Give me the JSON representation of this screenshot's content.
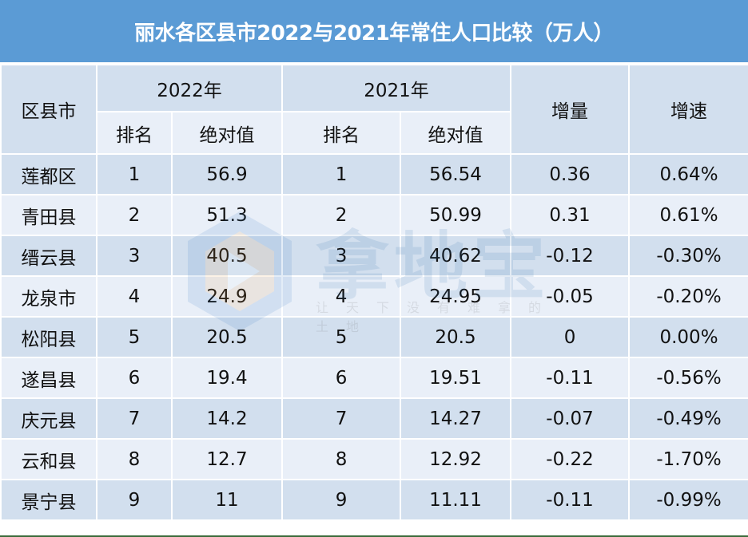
{
  "title": "丽水各区县市2022与2021年常住人口比较（万人）",
  "colors": {
    "title_bg": "#5b9bd5",
    "header_bg": "#d2dfee",
    "row_dark": "#d2dfee",
    "row_light": "#e9eff8"
  },
  "header": {
    "district": "区县市",
    "year2022": "2022年",
    "year2021": "2021年",
    "change": "增量",
    "growth": "增速",
    "rank": "排名",
    "absolute": "绝对值"
  },
  "watermark": {
    "text": "拿地宝",
    "slogan": "让天下没有难拿的土地"
  },
  "rows": [
    {
      "name": "莲都区",
      "rank2022": "1",
      "val2022": "56.9",
      "rank2021": "1",
      "val2021": "56.54",
      "change": "0.36",
      "growth": "0.64%"
    },
    {
      "name": "青田县",
      "rank2022": "2",
      "val2022": "51.3",
      "rank2021": "2",
      "val2021": "50.99",
      "change": "0.31",
      "growth": "0.61%"
    },
    {
      "name": "缙云县",
      "rank2022": "3",
      "val2022": "40.5",
      "rank2021": "3",
      "val2021": "40.62",
      "change": "-0.12",
      "growth": "-0.30%"
    },
    {
      "name": "龙泉市",
      "rank2022": "4",
      "val2022": "24.9",
      "rank2021": "4",
      "val2021": "24.95",
      "change": "-0.05",
      "growth": "-0.20%"
    },
    {
      "name": "松阳县",
      "rank2022": "5",
      "val2022": "20.5",
      "rank2021": "5",
      "val2021": "20.5",
      "change": "0",
      "growth": "0.00%"
    },
    {
      "name": "遂昌县",
      "rank2022": "6",
      "val2022": "19.4",
      "rank2021": "6",
      "val2021": "19.51",
      "change": "-0.11",
      "growth": "-0.56%"
    },
    {
      "name": "庆元县",
      "rank2022": "7",
      "val2022": "14.2",
      "rank2021": "7",
      "val2021": "14.27",
      "change": "-0.07",
      "growth": "-0.49%"
    },
    {
      "name": "云和县",
      "rank2022": "8",
      "val2022": "12.7",
      "rank2021": "8",
      "val2021": "12.92",
      "change": "-0.22",
      "growth": "-1.70%"
    },
    {
      "name": "景宁县",
      "rank2022": "9",
      "val2022": "11",
      "rank2021": "9",
      "val2021": "11.11",
      "change": "-0.11",
      "growth": "-0.99%"
    }
  ]
}
